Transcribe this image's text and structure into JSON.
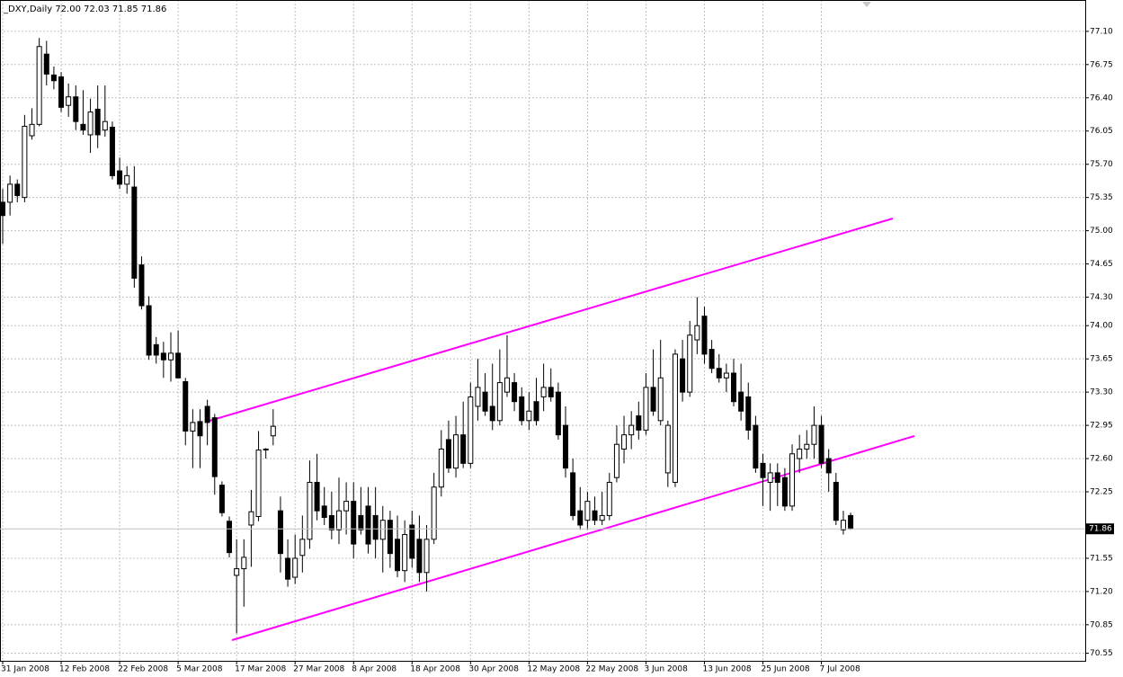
{
  "chart_data": {
    "type": "candlestick",
    "title": "_DXY,Daily  72.00 72.03 71.85 71.86",
    "categories": [
      "31 Jan 2008",
      null,
      null,
      null,
      null,
      null,
      null,
      null,
      "12 Feb 2008",
      null,
      null,
      null,
      null,
      null,
      null,
      null,
      "22 Feb 2008",
      null,
      null,
      null,
      null,
      null,
      null,
      null,
      "5 Mar 2008",
      null,
      null,
      null,
      null,
      null,
      null,
      null,
      "17 Mar 2008",
      null,
      null,
      null,
      null,
      null,
      null,
      null,
      "27 Mar 2008",
      null,
      null,
      null,
      null,
      null,
      null,
      null,
      "8 Apr 2008",
      null,
      null,
      null,
      null,
      null,
      null,
      null,
      "18 Apr 2008",
      null,
      null,
      null,
      null,
      null,
      null,
      null,
      "30 Apr 2008",
      null,
      null,
      null,
      null,
      null,
      null,
      null,
      "12 May 2008",
      null,
      null,
      null,
      null,
      null,
      null,
      null,
      "22 May 2008",
      null,
      null,
      null,
      null,
      null,
      null,
      null,
      "3 Jun 2008",
      null,
      null,
      null,
      null,
      null,
      null,
      null,
      "13 Jun 2008",
      null,
      null,
      null,
      null,
      null,
      null,
      null,
      "25 Jun 2008",
      null,
      null,
      null,
      null,
      null,
      null,
      null,
      "7 Jul 2008",
      null,
      null,
      null,
      null
    ],
    "open": [
      75.3,
      75.3,
      75.49,
      75.35,
      76.0,
      76.12,
      76.86,
      76.64,
      76.62,
      76.32,
      76.41,
      76.12,
      76.01,
      76.28,
      76.06,
      76.09,
      75.63,
      75.49,
      75.46,
      74.64,
      74.21,
      73.8,
      73.71,
      73.64,
      73.71,
      73.41,
      72.89,
      72.99,
      73.15,
      73.03,
      72.32,
      71.94,
      71.37,
      71.44,
      71.9,
      71.99,
      72.7,
      72.84,
      72.05,
      71.55,
      71.35,
      71.58,
      71.75,
      72.35,
      72.1,
      72.0,
      71.85,
      72.05,
      72.15,
      72.0,
      72.1,
      72.0,
      71.75,
      71.95,
      71.75,
      71.42,
      71.9,
      71.75,
      71.4,
      71.75,
      72.3,
      72.8,
      72.5,
      72.85,
      72.55,
      73.15,
      73.3,
      73.15,
      73.0,
      73.3,
      73.4,
      73.25,
      73.0,
      73.2,
      73.25,
      73.35,
      73.3,
      72.95,
      72.45,
      72.05,
      71.95,
      72.05,
      71.95,
      72.0,
      72.4,
      72.7,
      72.85,
      73.05,
      72.9,
      73.35,
      73.0,
      72.45,
      72.35,
      73.65,
      73.3,
      73.85,
      74.1,
      73.75,
      73.55,
      73.45,
      73.5,
      73.3,
      73.25,
      72.95,
      72.55,
      72.35,
      72.45,
      72.4,
      72.1,
      72.6,
      72.7,
      72.75,
      72.95,
      72.6,
      72.35,
      71.85,
      72.0
    ],
    "high": [
      75.44,
      75.58,
      75.54,
      76.22,
      76.29,
      77.03,
      77.0,
      76.73,
      76.67,
      76.55,
      76.53,
      76.48,
      76.39,
      76.53,
      76.53,
      76.15,
      75.77,
      75.68,
      75.68,
      74.73,
      74.31,
      73.88,
      73.83,
      73.93,
      73.95,
      73.45,
      73.12,
      73.12,
      73.22,
      73.07,
      72.36,
      71.99,
      71.75,
      71.75,
      72.27,
      72.89,
      72.71,
      73.12,
      72.2,
      71.75,
      71.8,
      72.0,
      72.58,
      72.65,
      72.3,
      72.25,
      72.4,
      72.35,
      72.35,
      72.3,
      72.3,
      72.3,
      72.1,
      72.05,
      72.0,
      71.95,
      72.05,
      72.0,
      71.9,
      72.45,
      72.9,
      73.0,
      73.05,
      73.2,
      73.4,
      73.65,
      73.5,
      73.6,
      73.75,
      73.9,
      73.5,
      73.35,
      73.3,
      73.45,
      73.6,
      73.55,
      73.4,
      73.15,
      72.6,
      72.3,
      72.25,
      72.2,
      72.25,
      72.45,
      72.95,
      73.05,
      73.1,
      73.2,
      73.5,
      73.75,
      73.85,
      73.0,
      73.75,
      73.85,
      74.05,
      74.3,
      74.2,
      73.85,
      73.7,
      73.6,
      73.65,
      73.6,
      73.4,
      73.05,
      72.65,
      72.55,
      72.55,
      72.5,
      72.75,
      72.85,
      72.9,
      73.15,
      73.05,
      72.7,
      72.45,
      72.05,
      72.03
    ],
    "low": [
      74.86,
      75.16,
      75.3,
      75.3,
      75.96,
      76.1,
      76.53,
      76.49,
      76.25,
      76.2,
      76.06,
      76.01,
      75.82,
      75.87,
      75.99,
      75.54,
      75.44,
      75.39,
      74.4,
      74.17,
      73.64,
      73.6,
      73.45,
      73.41,
      73.45,
      72.74,
      72.5,
      72.5,
      72.74,
      72.22,
      71.99,
      71.56,
      70.76,
      71.04,
      71.46,
      71.94,
      72.6,
      72.74,
      71.4,
      71.25,
      71.28,
      71.4,
      71.65,
      71.95,
      71.9,
      71.75,
      71.7,
      71.8,
      71.55,
      71.8,
      71.6,
      71.55,
      71.4,
      71.45,
      71.35,
      71.3,
      71.45,
      71.3,
      71.2,
      71.7,
      72.2,
      72.45,
      72.4,
      72.5,
      72.5,
      73.0,
      73.05,
      72.9,
      72.95,
      73.25,
      73.1,
      72.95,
      72.9,
      72.95,
      73.1,
      73.2,
      72.8,
      72.4,
      71.95,
      71.85,
      71.85,
      71.9,
      71.9,
      71.95,
      72.35,
      72.55,
      72.7,
      72.8,
      72.85,
      73.05,
      72.95,
      72.3,
      72.3,
      73.2,
      73.25,
      73.7,
      73.6,
      73.5,
      73.4,
      73.3,
      73.15,
      73.0,
      72.8,
      72.45,
      72.1,
      72.05,
      72.1,
      72.05,
      72.05,
      72.45,
      72.6,
      72.6,
      72.5,
      72.25,
      71.9,
      71.8,
      71.85
    ],
    "close": [
      75.16,
      75.49,
      75.37,
      76.1,
      76.12,
      76.94,
      76.65,
      76.58,
      76.3,
      76.41,
      76.15,
      76.06,
      76.25,
      76.01,
      76.15,
      75.58,
      75.49,
      75.58,
      74.5,
      74.21,
      73.69,
      73.69,
      73.64,
      73.71,
      73.45,
      72.89,
      72.98,
      72.84,
      72.98,
      72.41,
      72.03,
      71.61,
      71.44,
      71.56,
      72.04,
      72.69,
      72.7,
      72.94,
      71.6,
      71.33,
      71.55,
      71.75,
      72.35,
      72.05,
      71.98,
      71.85,
      72.05,
      72.15,
      71.7,
      71.85,
      71.7,
      71.75,
      71.95,
      71.6,
      71.42,
      71.8,
      71.55,
      71.4,
      71.75,
      72.3,
      72.7,
      72.5,
      72.85,
      72.55,
      73.25,
      73.35,
      73.1,
      73.0,
      73.4,
      73.45,
      73.2,
      73.0,
      73.1,
      73.0,
      73.35,
      73.25,
      72.85,
      72.5,
      72.0,
      71.9,
      72.15,
      71.95,
      72.0,
      72.35,
      72.75,
      72.85,
      72.95,
      72.9,
      73.35,
      73.1,
      73.45,
      72.95,
      73.7,
      73.3,
      73.9,
      74.0,
      73.7,
      73.55,
      73.45,
      73.5,
      73.2,
      73.1,
      72.9,
      72.5,
      72.4,
      72.45,
      72.35,
      72.1,
      72.65,
      72.7,
      72.75,
      72.95,
      72.55,
      72.45,
      71.95,
      71.95,
      71.86
    ],
    "last_price": 71.86,
    "ylim": [
      70.47,
      77.43
    ],
    "yticks": [
      {
        "value": 77.1,
        "label": "77.10"
      },
      76.75,
      {
        "value": 76.4,
        "label": "76.40"
      },
      76.05,
      {
        "value": 75.7,
        "label": "75.70"
      },
      75.35,
      {
        "value": 75,
        "label": "75.00"
      },
      74.65,
      {
        "value": 74.3,
        "label": "74.30"
      },
      {
        "value": 74,
        "label": "74.00"
      },
      73.65,
      {
        "value": 73.3,
        "label": "73.30"
      },
      72.95,
      {
        "value": 72.6,
        "label": "72.60"
      },
      72.25,
      71.55,
      {
        "value": 71.2,
        "label": "71.20"
      },
      70.85,
      70.55
    ],
    "grid": true,
    "up_color": "#ffffff",
    "down_color": "#000000"
  }
}
